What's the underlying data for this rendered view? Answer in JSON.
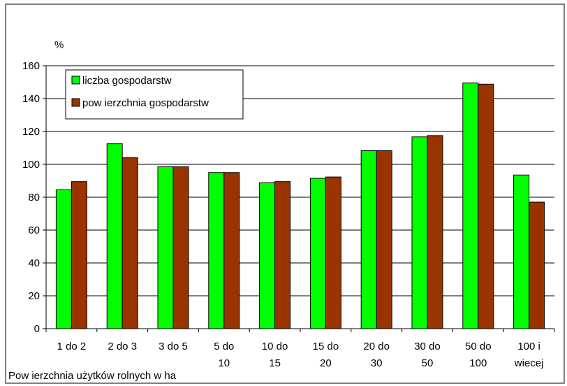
{
  "chart_data": {
    "type": "bar",
    "title": "",
    "ylabel": "%",
    "xlabel": "Pow ierzchnia użytków rolnych w ha",
    "ylim": [
      0,
      160
    ],
    "ytick_step": 20,
    "grid": true,
    "legend_position": "top-left",
    "categories": [
      [
        "1 do 2"
      ],
      [
        "2 do 3"
      ],
      [
        "3 do 5"
      ],
      [
        "5 do",
        "10"
      ],
      [
        "10 do",
        "15"
      ],
      [
        "15 do",
        "20"
      ],
      [
        "20 do",
        "30"
      ],
      [
        "30 do",
        "50"
      ],
      [
        "50 do",
        "100"
      ],
      [
        "100 i",
        "wiecej"
      ]
    ],
    "series": [
      {
        "name": "liczba gospodarstw",
        "color": "#00ff00",
        "values": [
          84.5,
          112.5,
          98.5,
          95,
          88.8,
          91.5,
          108.3,
          116.7,
          149.5,
          93.5
        ]
      },
      {
        "name": "pow ierzchnia gospodarstw",
        "color": "#993300",
        "values": [
          89.5,
          104,
          98.5,
          95,
          89.5,
          92.3,
          108.3,
          117.5,
          148.8,
          77
        ]
      }
    ]
  }
}
